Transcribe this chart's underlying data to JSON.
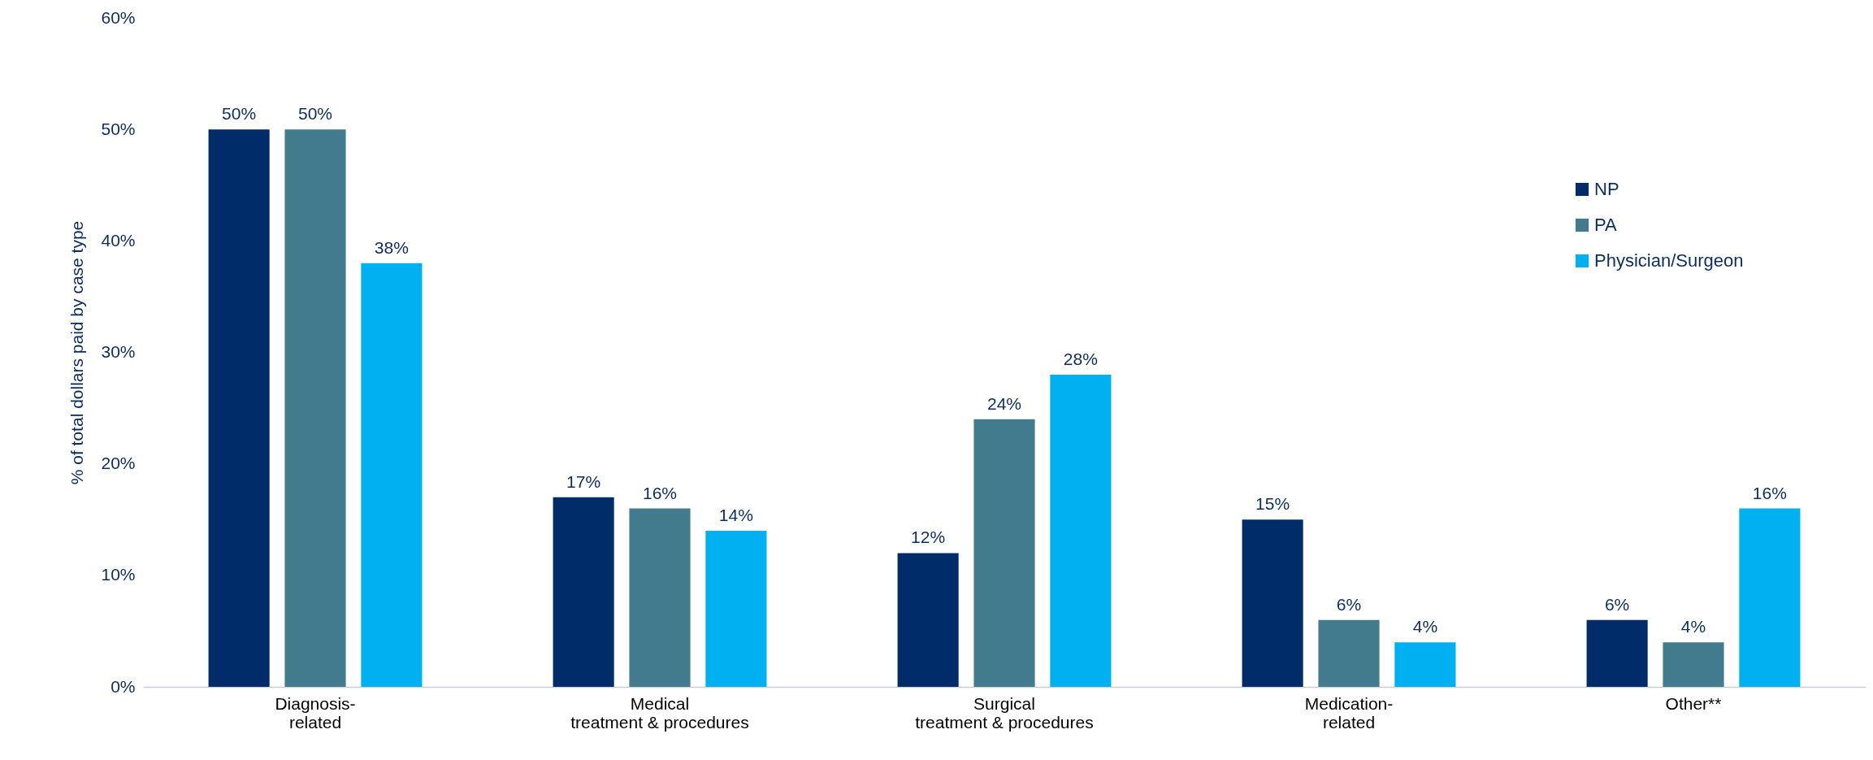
{
  "chart_data": {
    "type": "bar",
    "ylabel": "% of total dollars paid by case type",
    "categories": [
      "Diagnosis-\nrelated",
      "Medical\ntreatment & procedures",
      "Surgical\ntreatment & procedures",
      "Medication-\nrelated",
      "Other**"
    ],
    "series": [
      {
        "name": "NP",
        "color": "#002d6a",
        "values": [
          50,
          17,
          12,
          15,
          6
        ],
        "value_labels": [
          "50%",
          "17%",
          "12%",
          "15%",
          "6%"
        ]
      },
      {
        "name": "PA",
        "color": "#427b8e",
        "values": [
          50,
          16,
          24,
          6,
          4
        ],
        "value_labels": [
          "50%",
          "16%",
          "24%",
          "6%",
          "4%"
        ]
      },
      {
        "name": "Physician/Surgeon",
        "color": "#00b0f0",
        "values": [
          38,
          14,
          28,
          4,
          16
        ],
        "value_labels": [
          "38%",
          "14%",
          "28%",
          "4%",
          "16%"
        ]
      }
    ],
    "ylim": [
      0,
      60
    ],
    "yticks": [
      {
        "value": 0,
        "label": "0%"
      },
      {
        "value": 10,
        "label": "10%"
      },
      {
        "value": 20,
        "label": "20%"
      },
      {
        "value": 30,
        "label": "30%"
      },
      {
        "value": 40,
        "label": "40%"
      },
      {
        "value": 50,
        "label": "50%"
      },
      {
        "value": 60,
        "label": "60%"
      }
    ],
    "grid": false,
    "legend": "right"
  }
}
